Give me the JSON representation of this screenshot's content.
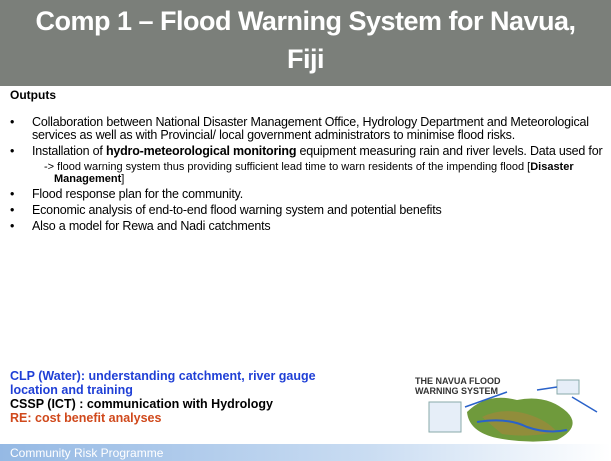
{
  "title": "Comp 1 – Flood Warning System for Navua, Fiji",
  "heading": "Outputs",
  "bullets": [
    [
      "Collaboration between National Disaster Management Office, Hydrology Department and Meteorological services as well as with Provincial/ local government administrators to minimise flood risks."
    ],
    [
      "Installation of ",
      "hydro-meteorological monitoring",
      " equipment measuring rain and river levels.  Data used for"
    ],
    [
      "Flood response plan for the community."
    ],
    [
      "Economic analysis of end-to-end flood warning system and potential benefits"
    ],
    [
      "Also a model for Rewa and Nadi catchments"
    ]
  ],
  "sub_bullet": [
    "-> flood warning system thus providing sufficient lead time to warn residents of the impending flood [",
    "Disaster Management",
    "]"
  ],
  "notes": [
    "CLP (Water): understanding catchment, river gauge location and training",
    "CSSP (ICT) : communication with Hydrology",
    "RE: cost benefit analyses"
  ],
  "figure": {
    "title_lines": [
      "THE NAVUA FLOOD",
      "WARNING SYSTEM"
    ]
  },
  "footer": "Community Risk Programme"
}
